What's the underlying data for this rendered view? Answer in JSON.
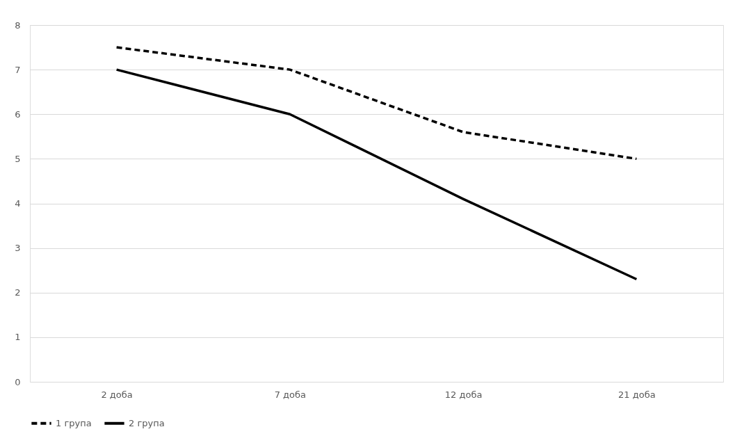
{
  "chart_data": {
    "type": "line",
    "categories": [
      "2 доба",
      "7 доба",
      "12 доба",
      "21 доба"
    ],
    "series": [
      {
        "name": "1 група",
        "color": "#000000",
        "line_style": "dashed",
        "values": [
          7.5,
          7.0,
          5.6,
          5.0
        ]
      },
      {
        "name": "2 група",
        "color": "#000000",
        "line_style": "solid",
        "values": [
          7.0,
          6.0,
          4.1,
          2.3
        ]
      }
    ],
    "ylim": [
      0,
      8
    ],
    "yticks": [
      0,
      1,
      2,
      3,
      4,
      5,
      6,
      7,
      8
    ],
    "grid": "y",
    "legend": "bottom"
  }
}
